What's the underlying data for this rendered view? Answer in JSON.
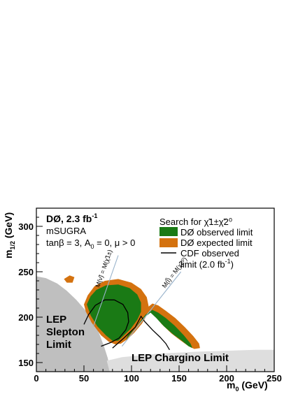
{
  "chart_data": {
    "type": "area",
    "xlabel": "m0 (GeV)",
    "ylabel": "m1/2 (GeV)",
    "xlim": [
      0,
      250
    ],
    "ylim": [
      140,
      320
    ],
    "x_ticks": [
      0,
      50,
      100,
      150,
      200,
      250
    ],
    "y_ticks": [
      150,
      200,
      250,
      300
    ],
    "grid": false,
    "legend_position": "top-right",
    "annotations": {
      "experiment": "DØ, 2.3 fb",
      "experiment_sup": "-1",
      "model": "mSUGRA",
      "params_prefix": "tanβ = 3, A",
      "params_sub": "0",
      "params_suffix": " = 0, μ > 0",
      "lep_slepton": [
        "LEP",
        "Slepton",
        "Limit"
      ],
      "lep_chargino": "LEP Chargino Limit",
      "line1_label": "M(ν̃) = M(χ̃1±)",
      "line2_label": "M(l̃) = M(χ̃2⁰)"
    },
    "legend": {
      "header": "Search for χ̃1±χ̃2⁰",
      "entries": [
        {
          "label": "DØ observed limit",
          "color": "#1a7a15"
        },
        {
          "label": "DØ expected limit",
          "color": "#d4720f"
        },
        {
          "label": "CDF observed",
          "label2": "limit (2.0 fb",
          "label2_sup": "-1",
          "label2_end": ")",
          "color": "#000000"
        }
      ]
    },
    "series": [
      {
        "name": "LEP Slepton Limit",
        "color": "#bfbfbf",
        "polygon": [
          [
            0,
            245
          ],
          [
            10,
            243
          ],
          [
            22,
            237
          ],
          [
            32,
            229
          ],
          [
            42,
            219
          ],
          [
            52,
            207
          ],
          [
            60,
            195
          ],
          [
            66,
            182
          ],
          [
            71,
            168
          ],
          [
            75,
            155
          ],
          [
            78,
            140
          ],
          [
            0,
            140
          ]
        ]
      },
      {
        "name": "LEP Chargino Limit",
        "color": "#dedede",
        "polygon": [
          [
            74,
            152
          ],
          [
            90,
            156
          ],
          [
            110,
            158
          ],
          [
            130,
            160
          ],
          [
            150,
            161
          ],
          [
            170,
            162
          ],
          [
            200,
            163
          ],
          [
            230,
            164
          ],
          [
            250,
            164
          ],
          [
            250,
            140
          ],
          [
            77,
            140
          ]
        ]
      },
      {
        "name": "DØ expected limit",
        "color": "#d4720f",
        "polygons": [
          [
            [
              50,
              214
            ],
            [
              54,
              224
            ],
            [
              61,
              234
            ],
            [
              72,
              240
            ],
            [
              86,
              242
            ],
            [
              100,
              238
            ],
            [
              110,
              231
            ],
            [
              116,
              222
            ],
            [
              118,
              212
            ],
            [
              116,
              202
            ],
            [
              111,
              193
            ],
            [
              103,
              183
            ],
            [
              96,
              176
            ],
            [
              89,
              171
            ],
            [
              83,
              170
            ],
            [
              76,
              173
            ],
            [
              68,
              180
            ],
            [
              58,
              194
            ],
            [
              52,
              206
            ]
          ],
          [
            [
              88,
              170
            ],
            [
              101,
              187
            ],
            [
              112,
              200
            ],
            [
              120,
              207
            ],
            [
              124,
              202
            ],
            [
              132,
              192
            ],
            [
              142,
              182
            ],
            [
              152,
              174
            ],
            [
              160,
              168
            ],
            [
              166,
              165
            ],
            [
              172,
              166
            ],
            [
              171,
              171
            ],
            [
              165,
              179
            ],
            [
              156,
              189
            ],
            [
              146,
              199
            ],
            [
              136,
              207
            ],
            [
              128,
              213
            ],
            [
              122,
              215
            ],
            [
              116,
              210
            ],
            [
              104,
              196
            ],
            [
              94,
              182
            ],
            [
              90,
              174
            ]
          ],
          [
            [
              29,
              242
            ],
            [
              35,
              246
            ],
            [
              40,
              244
            ],
            [
              38,
              238
            ],
            [
              32,
              238
            ]
          ]
        ]
      },
      {
        "name": "DØ observed limit",
        "color": "#1a7a15",
        "polygons": [
          [
            [
              53,
              214
            ],
            [
              57,
              223
            ],
            [
              63,
              230
            ],
            [
              73,
              235
            ],
            [
              86,
              236
            ],
            [
              98,
              232
            ],
            [
              106,
              225
            ],
            [
              110,
              216
            ],
            [
              110,
              206
            ],
            [
              106,
              197
            ],
            [
              99,
              187
            ],
            [
              92,
              180
            ],
            [
              86,
              174
            ],
            [
              80,
              174
            ],
            [
              73,
              180
            ],
            [
              64,
              190
            ],
            [
              57,
              202
            ]
          ],
          [
            [
              94,
              175
            ],
            [
              105,
              190
            ],
            [
              114,
              200
            ],
            [
              120,
              205
            ],
            [
              126,
              199
            ],
            [
              134,
              190
            ],
            [
              144,
              181
            ],
            [
              153,
              174
            ],
            [
              160,
              168
            ],
            [
              164,
              166
            ],
            [
              162,
              171
            ],
            [
              155,
              180
            ],
            [
              145,
              191
            ],
            [
              136,
              199
            ],
            [
              128,
              205
            ],
            [
              122,
              208
            ],
            [
              115,
              203
            ],
            [
              104,
              189
            ],
            [
              96,
              180
            ]
          ]
        ]
      },
      {
        "name": "CDF observed limit",
        "color": "#000000",
        "type": "line",
        "segments": [
          [
            [
              50,
              192
            ],
            [
              55,
              203
            ],
            [
              62,
              213
            ],
            [
              72,
              219
            ],
            [
              82,
              219
            ],
            [
              91,
              214
            ],
            [
              96,
              205
            ],
            [
              97,
              195
            ],
            [
              94,
              186
            ],
            [
              87,
              177
            ],
            [
              78,
              172
            ],
            [
              68,
              168
            ]
          ],
          [
            [
              80,
              166
            ],
            [
              92,
              177
            ],
            [
              104,
              189
            ],
            [
              110,
              201
            ],
            [
              114,
              195
            ],
            [
              122,
              186
            ],
            [
              130,
              178
            ],
            [
              136,
              171
            ],
            [
              140,
              164
            ]
          ]
        ]
      },
      {
        "name": "M(ν̃) = M(χ̃1±)",
        "color": "#9ab4cc",
        "type": "line",
        "segments": [
          [
            [
              60,
              190
            ],
            [
              86,
              268
            ]
          ]
        ]
      },
      {
        "name": "M(l̃) = M(χ̃2⁰)",
        "color": "#9ab4cc",
        "type": "line",
        "segments": [
          [
            [
              90,
              168
            ],
            [
              152,
              250
            ]
          ]
        ]
      }
    ]
  }
}
